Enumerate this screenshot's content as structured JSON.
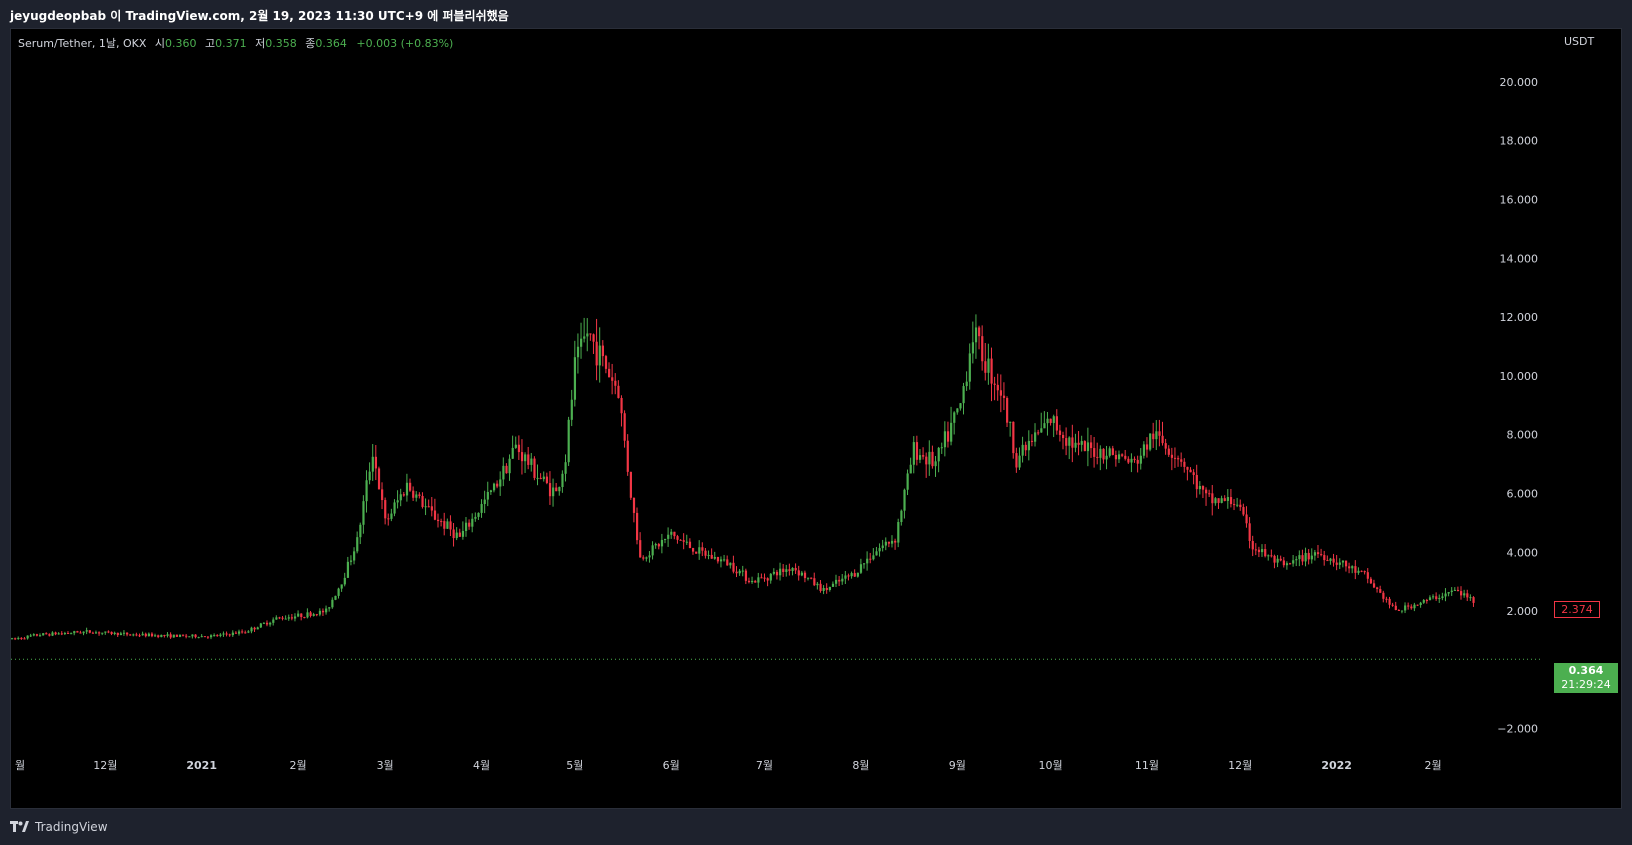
{
  "header": {
    "publish_text": "jeyugdeopbab 이 TradingView.com, 2월 19, 2023 11:30 UTC+9 에 퍼블리쉬했음"
  },
  "legend": {
    "symbol": "Serum/Tether, 1날, OKX",
    "open_label": "시",
    "open_value": "0.360",
    "high_label": "고",
    "high_value": "0.371",
    "low_label": "저",
    "low_value": "0.358",
    "close_label": "종",
    "close_value": "0.364",
    "change": "+0.003 (+0.83%)"
  },
  "price_scale": {
    "currency": "USDT",
    "last_price": "0.364",
    "countdown": "21:29:24",
    "prev_tag": "2.374"
  },
  "footer": {
    "brand": "TradingView"
  },
  "colors": {
    "up": "#4caf50",
    "down": "#f23645",
    "background": "#000000",
    "grid": "#0b0b0b"
  },
  "chart_data": {
    "type": "candlestick",
    "ylim": [
      -3.2,
      21.8
    ],
    "y_ticks": [
      "20.000",
      "18.000",
      "16.000",
      "14.000",
      "12.000",
      "10.000",
      "8.000",
      "6.000",
      "4.000",
      "2.000",
      "−2.000"
    ],
    "y_tick_values": [
      20,
      18,
      16,
      14,
      12,
      10,
      8,
      6,
      4,
      2,
      -2
    ],
    "x_ticks": [
      {
        "label": "월",
        "date": "2020-11-01",
        "bold": false
      },
      {
        "label": "12월",
        "date": "2020-12-01",
        "bold": false
      },
      {
        "label": "2021",
        "date": "2021-01-01",
        "bold": true
      },
      {
        "label": "2월",
        "date": "2021-02-01",
        "bold": false
      },
      {
        "label": "3월",
        "date": "2021-03-01",
        "bold": false
      },
      {
        "label": "4월",
        "date": "2021-04-01",
        "bold": false
      },
      {
        "label": "5월",
        "date": "2021-05-01",
        "bold": false
      },
      {
        "label": "6월",
        "date": "2021-06-01",
        "bold": false
      },
      {
        "label": "7월",
        "date": "2021-07-01",
        "bold": false
      },
      {
        "label": "8월",
        "date": "2021-08-01",
        "bold": false
      },
      {
        "label": "9월",
        "date": "2021-09-01",
        "bold": false
      },
      {
        "label": "10월",
        "date": "2021-10-01",
        "bold": false
      },
      {
        "label": "11월",
        "date": "2021-11-01",
        "bold": false
      },
      {
        "label": "12월",
        "date": "2021-12-01",
        "bold": false
      },
      {
        "label": "2022",
        "date": "2022-01-01",
        "bold": true
      },
      {
        "label": "2월",
        "date": "2022-02-01",
        "bold": false
      }
    ],
    "last_price": 0.364,
    "close_anchors": [
      [
        "2020-11-01",
        1.05
      ],
      [
        "2020-11-10",
        1.2
      ],
      [
        "2020-11-25",
        1.3
      ],
      [
        "2020-12-10",
        1.2
      ],
      [
        "2020-12-25",
        1.15
      ],
      [
        "2021-01-05",
        1.15
      ],
      [
        "2021-01-15",
        1.3
      ],
      [
        "2021-01-25",
        1.75
      ],
      [
        "2021-02-05",
        1.9
      ],
      [
        "2021-02-10",
        2.0
      ],
      [
        "2021-02-15",
        3.0
      ],
      [
        "2021-02-20",
        4.4
      ],
      [
        "2021-02-25",
        7.5
      ],
      [
        "2021-03-01",
        5.0
      ],
      [
        "2021-03-08",
        6.3
      ],
      [
        "2021-03-15",
        5.4
      ],
      [
        "2021-03-25",
        4.5
      ],
      [
        "2021-04-05",
        6.2
      ],
      [
        "2021-04-12",
        7.6
      ],
      [
        "2021-04-20",
        6.5
      ],
      [
        "2021-04-25",
        6.0
      ],
      [
        "2021-04-28",
        7.2
      ],
      [
        "2021-05-01",
        10.3
      ],
      [
        "2021-05-05",
        11.5
      ],
      [
        "2021-05-10",
        10.5
      ],
      [
        "2021-05-15",
        9.5
      ],
      [
        "2021-05-19",
        6.0
      ],
      [
        "2021-05-22",
        3.8
      ],
      [
        "2021-06-01",
        4.6
      ],
      [
        "2021-06-10",
        4.0
      ],
      [
        "2021-06-20",
        3.6
      ],
      [
        "2021-06-27",
        3.0
      ],
      [
        "2021-07-10",
        3.5
      ],
      [
        "2021-07-20",
        2.7
      ],
      [
        "2021-07-30",
        3.3
      ],
      [
        "2021-08-05",
        4.0
      ],
      [
        "2021-08-12",
        4.5
      ],
      [
        "2021-08-18",
        7.5
      ],
      [
        "2021-08-25",
        7.0
      ],
      [
        "2021-09-02",
        9.0
      ],
      [
        "2021-09-06",
        11.5
      ],
      [
        "2021-09-10",
        10.5
      ],
      [
        "2021-09-15",
        9.5
      ],
      [
        "2021-09-20",
        7.2
      ],
      [
        "2021-10-01",
        8.5
      ],
      [
        "2021-10-10",
        7.5
      ],
      [
        "2021-10-20",
        7.4
      ],
      [
        "2021-10-28",
        7.0
      ],
      [
        "2021-11-03",
        8.0
      ],
      [
        "2021-11-12",
        7.2
      ],
      [
        "2021-11-20",
        5.8
      ],
      [
        "2021-11-30",
        5.7
      ],
      [
        "2021-12-05",
        4.2
      ],
      [
        "2021-12-15",
        3.5
      ],
      [
        "2021-12-25",
        4.0
      ],
      [
        "2022-01-01",
        3.7
      ],
      [
        "2022-01-10",
        3.2
      ],
      [
        "2022-01-20",
        2.0
      ],
      [
        "2022-01-31",
        2.4
      ],
      [
        "2022-02-08",
        2.7
      ],
      [
        "2022-02-14",
        2.374
      ]
    ]
  }
}
